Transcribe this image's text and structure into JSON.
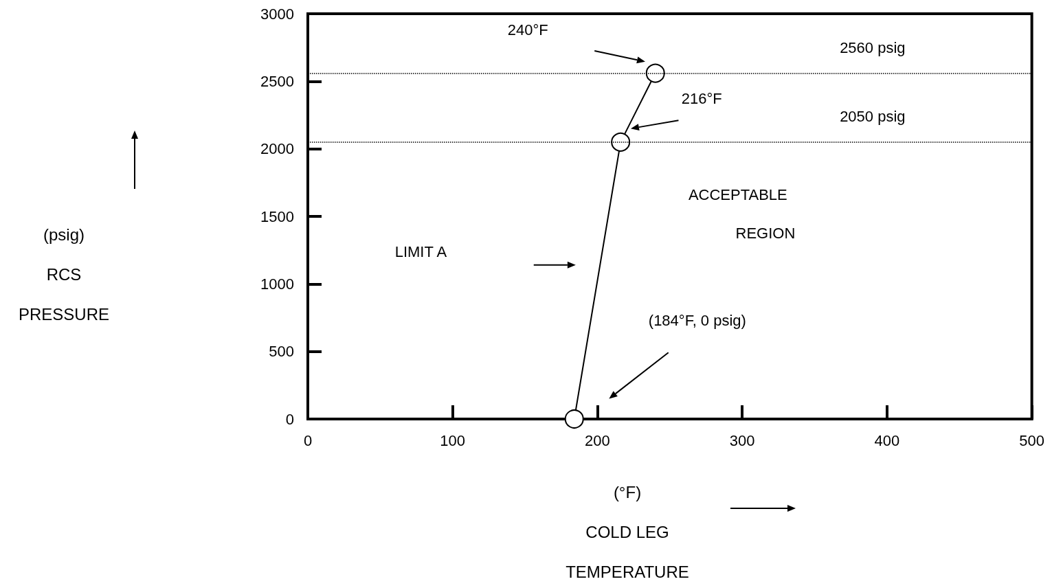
{
  "chart_data": {
    "type": "line",
    "xlabel": "(°F)\nCOLD LEG\nTEMPERATURE",
    "ylabel": "(psig)\nRCS\nPRESSURE",
    "x": [
      184,
      216,
      240
    ],
    "series": [
      {
        "color": "#000000",
        "values": [
          0,
          2050,
          2560
        ]
      }
    ],
    "xlim": [
      0,
      500
    ],
    "xticks": [
      0,
      100,
      200,
      300,
      400,
      500
    ],
    "ylim": [
      0,
      3000
    ],
    "yticks": [
      0,
      500,
      1000,
      1500,
      2000,
      2500,
      3000
    ],
    "marker": "circle",
    "line_style": "solid",
    "grid": false,
    "ref_lines": [
      {
        "axis": "y",
        "value": 2560,
        "label": "2560 psig",
        "line_style": "dotted",
        "color": "#000000"
      },
      {
        "axis": "y",
        "value": 2050,
        "label": "2050 psig",
        "line_style": "dotted",
        "color": "#000000"
      }
    ],
    "annotations": [
      "240°F",
      "216°F",
      "(184°F, 0 psig)",
      "LIMIT A",
      "ACCEPTABLE",
      "REGION"
    ]
  }
}
